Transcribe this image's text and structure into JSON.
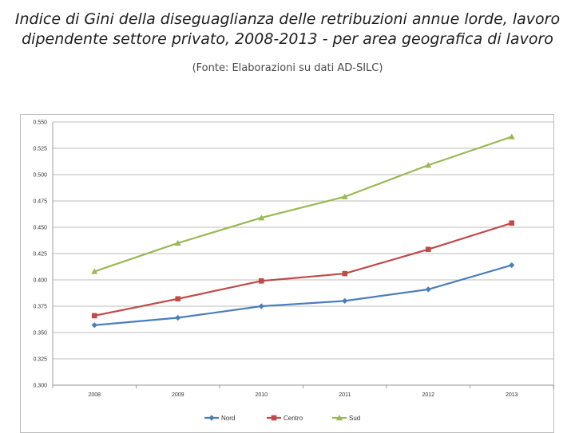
{
  "title_line1": "Indice di Gini della diseguaglianza delle retribuzioni annue lorde, lavoro",
  "title_line2": "dipendente settore privato, 2008-2013  -  per area geografica di lavoro",
  "subtitle": "(Fonte: Elaborazioni su dati AD-SILC)",
  "chart_data": {
    "type": "line",
    "x": [
      "2008",
      "2009",
      "2010",
      "2011",
      "2012",
      "2013"
    ],
    "ylim": [
      0.3,
      0.55
    ],
    "yticks": [
      "0.300",
      "0.325",
      "0.350",
      "0.375",
      "0.400",
      "0.425",
      "0.450",
      "0.475",
      "0.500",
      "0.525",
      "0.550"
    ],
    "grid": true,
    "legend_position": "bottom",
    "series": [
      {
        "name": "Nord",
        "color": "#4a7ebb",
        "marker": "diamond",
        "values": [
          0.357,
          0.364,
          0.375,
          0.38,
          0.391,
          0.414
        ]
      },
      {
        "name": "Centro",
        "color": "#be4b48",
        "marker": "square",
        "values": [
          0.366,
          0.382,
          0.399,
          0.406,
          0.429,
          0.454
        ]
      },
      {
        "name": "Sud",
        "color": "#98b954",
        "marker": "triangle",
        "values": [
          0.408,
          0.435,
          0.459,
          0.479,
          0.509,
          0.536
        ]
      }
    ]
  }
}
